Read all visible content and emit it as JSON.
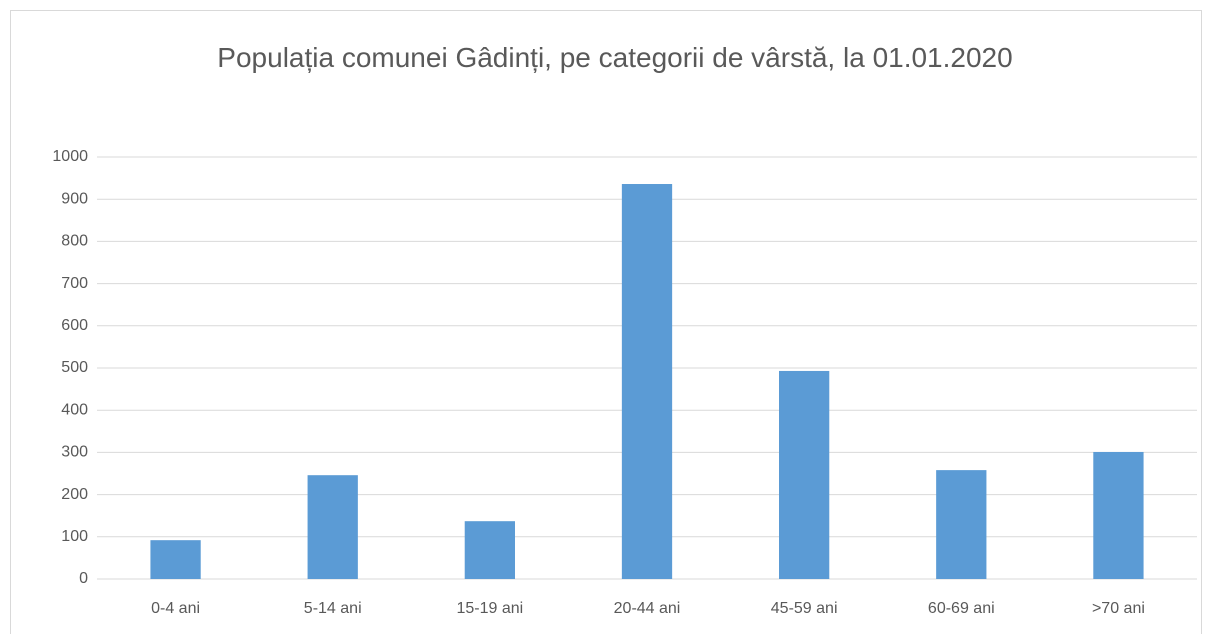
{
  "chart_data": {
    "type": "bar",
    "title": "Populația comunei Gâdinți, pe categorii de vârstă, la 01.01.2020",
    "categories": [
      "0-4 ani",
      "5-14 ani",
      "15-19 ani",
      "20-44 ani",
      "45-59 ani",
      "60-69 ani",
      ">70 ani"
    ],
    "values": [
      92,
      246,
      137,
      936,
      493,
      258,
      301
    ],
    "color": "#5b9bd5",
    "ylim": [
      0,
      1000
    ],
    "yticks": [
      0,
      100,
      200,
      300,
      400,
      500,
      600,
      700,
      800,
      900,
      1000
    ],
    "grid": true
  }
}
